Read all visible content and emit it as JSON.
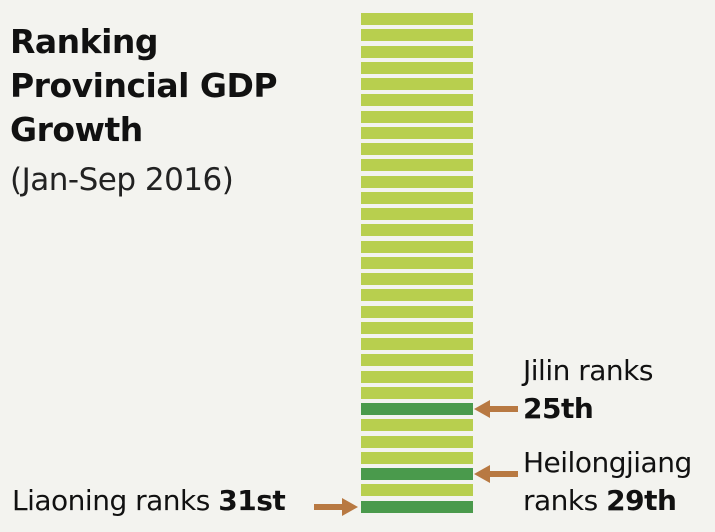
{
  "title": {
    "line1": "Ranking",
    "line2": "Provincial GDP",
    "line3": "Growth"
  },
  "subtitle": "(Jan-Sep 2016)",
  "colors": {
    "bar_default": "#b8cf4e",
    "bar_highlight": "#4a9a4c",
    "arrow": "#b87942",
    "background": "#f3f3ef"
  },
  "ranking": {
    "total": 31,
    "highlighted_ranks": [
      25,
      29,
      31
    ]
  },
  "annotations": {
    "jilin": {
      "line1": "Jilin ranks",
      "rank": "25th"
    },
    "heilongjiang": {
      "line1": "Heilongjiang",
      "line2_prefix": "ranks ",
      "rank": "29th"
    },
    "liaoning": {
      "prefix": "Liaoning ranks ",
      "rank": "31st"
    }
  }
}
